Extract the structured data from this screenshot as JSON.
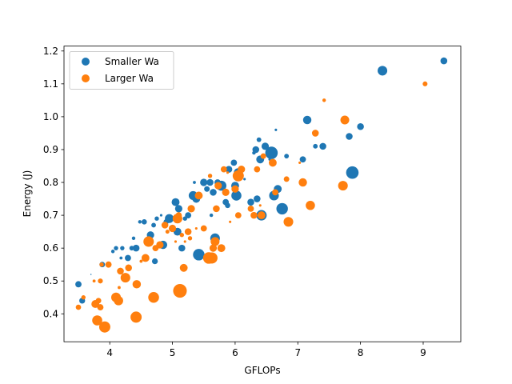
{
  "chart_data": {
    "type": "scatter",
    "title": "",
    "xlabel": "GFLOPs",
    "ylabel": "Energy (J)",
    "xlim": [
      3.27,
      9.6
    ],
    "ylim": [
      0.315,
      1.215
    ],
    "xticks": [
      4,
      5,
      6,
      7,
      8,
      9
    ],
    "yticks": [
      0.4,
      0.5,
      0.6,
      0.7,
      0.8,
      0.9,
      1.0,
      1.1,
      1.2
    ],
    "grid": false,
    "legend_position": "top-left",
    "series": [
      {
        "name": "Smaller Wa",
        "color": "#1f77b4",
        "points": [
          {
            "x": 3.5,
            "y": 0.49,
            "s": 25
          },
          {
            "x": 3.56,
            "y": 0.44,
            "s": 22
          },
          {
            "x": 3.7,
            "y": 0.52,
            "s": 1
          },
          {
            "x": 3.88,
            "y": 0.55,
            "s": 20
          },
          {
            "x": 4.05,
            "y": 0.59,
            "s": 8
          },
          {
            "x": 4.1,
            "y": 0.6,
            "s": 12
          },
          {
            "x": 4.18,
            "y": 0.57,
            "s": 6
          },
          {
            "x": 4.2,
            "y": 0.6,
            "s": 12
          },
          {
            "x": 4.29,
            "y": 0.57,
            "s": 25
          },
          {
            "x": 4.35,
            "y": 0.6,
            "s": 14
          },
          {
            "x": 4.38,
            "y": 0.63,
            "s": 8
          },
          {
            "x": 4.42,
            "y": 0.6,
            "s": 30
          },
          {
            "x": 4.48,
            "y": 0.68,
            "s": 8
          },
          {
            "x": 4.55,
            "y": 0.68,
            "s": 18
          },
          {
            "x": 4.65,
            "y": 0.64,
            "s": 35
          },
          {
            "x": 4.7,
            "y": 0.67,
            "s": 14
          },
          {
            "x": 4.72,
            "y": 0.56,
            "s": 22
          },
          {
            "x": 4.75,
            "y": 0.69,
            "s": 12
          },
          {
            "x": 4.82,
            "y": 0.7,
            "s": 4
          },
          {
            "x": 4.85,
            "y": 0.61,
            "s": 45
          },
          {
            "x": 4.9,
            "y": 0.68,
            "s": 18
          },
          {
            "x": 4.95,
            "y": 0.69,
            "s": 50
          },
          {
            "x": 5.0,
            "y": 0.66,
            "s": 8
          },
          {
            "x": 5.05,
            "y": 0.74,
            "s": 40
          },
          {
            "x": 5.08,
            "y": 0.65,
            "s": 40
          },
          {
            "x": 5.1,
            "y": 0.72,
            "s": 35
          },
          {
            "x": 5.15,
            "y": 0.6,
            "s": 30
          },
          {
            "x": 5.2,
            "y": 0.69,
            "s": 12
          },
          {
            "x": 5.25,
            "y": 0.7,
            "s": 25
          },
          {
            "x": 5.33,
            "y": 0.76,
            "s": 50
          },
          {
            "x": 5.35,
            "y": 0.8,
            "s": 6
          },
          {
            "x": 5.38,
            "y": 0.75,
            "s": 40
          },
          {
            "x": 5.42,
            "y": 0.58,
            "s": 85
          },
          {
            "x": 5.5,
            "y": 0.8,
            "s": 35
          },
          {
            "x": 5.55,
            "y": 0.78,
            "s": 20
          },
          {
            "x": 5.6,
            "y": 0.8,
            "s": 30
          },
          {
            "x": 5.62,
            "y": 0.7,
            "s": 8
          },
          {
            "x": 5.65,
            "y": 0.77,
            "s": 30
          },
          {
            "x": 5.68,
            "y": 0.63,
            "s": 60
          },
          {
            "x": 5.72,
            "y": 0.8,
            "s": 25
          },
          {
            "x": 5.78,
            "y": 0.79,
            "s": 65
          },
          {
            "x": 5.85,
            "y": 0.74,
            "s": 25
          },
          {
            "x": 5.88,
            "y": 0.73,
            "s": 18
          },
          {
            "x": 5.9,
            "y": 0.84,
            "s": 30
          },
          {
            "x": 5.98,
            "y": 0.86,
            "s": 25
          },
          {
            "x": 6.0,
            "y": 0.79,
            "s": 40
          },
          {
            "x": 6.02,
            "y": 0.76,
            "s": 65
          },
          {
            "x": 6.05,
            "y": 0.83,
            "s": 50
          },
          {
            "x": 6.1,
            "y": 0.84,
            "s": 20
          },
          {
            "x": 6.15,
            "y": 0.81,
            "s": 4
          },
          {
            "x": 6.25,
            "y": 0.74,
            "s": 30
          },
          {
            "x": 6.3,
            "y": 0.89,
            "s": 8
          },
          {
            "x": 6.33,
            "y": 0.9,
            "s": 30
          },
          {
            "x": 6.35,
            "y": 0.75,
            "s": 30
          },
          {
            "x": 6.38,
            "y": 0.93,
            "s": 14
          },
          {
            "x": 6.4,
            "y": 0.87,
            "s": 40
          },
          {
            "x": 6.42,
            "y": 0.7,
            "s": 70
          },
          {
            "x": 6.48,
            "y": 0.91,
            "s": 35
          },
          {
            "x": 6.55,
            "y": 0.87,
            "s": 4
          },
          {
            "x": 6.58,
            "y": 0.89,
            "s": 100
          },
          {
            "x": 6.62,
            "y": 0.76,
            "s": 60
          },
          {
            "x": 6.65,
            "y": 0.96,
            "s": 4
          },
          {
            "x": 6.68,
            "y": 0.78,
            "s": 40
          },
          {
            "x": 6.75,
            "y": 0.72,
            "s": 85
          },
          {
            "x": 6.82,
            "y": 0.88,
            "s": 14
          },
          {
            "x": 7.08,
            "y": 0.87,
            "s": 25
          },
          {
            "x": 7.15,
            "y": 0.99,
            "s": 45
          },
          {
            "x": 7.28,
            "y": 0.91,
            "s": 14
          },
          {
            "x": 7.4,
            "y": 0.91,
            "s": 30
          },
          {
            "x": 7.82,
            "y": 0.94,
            "s": 30
          },
          {
            "x": 7.87,
            "y": 0.83,
            "s": 100
          },
          {
            "x": 8.0,
            "y": 0.97,
            "s": 30
          },
          {
            "x": 8.35,
            "y": 1.14,
            "s": 60
          },
          {
            "x": 9.33,
            "y": 1.17,
            "s": 30
          }
        ]
      },
      {
        "name": "Larger Wa",
        "color": "#ff7f0e",
        "points": [
          {
            "x": 3.5,
            "y": 0.42,
            "s": 18
          },
          {
            "x": 3.58,
            "y": 0.45,
            "s": 12
          },
          {
            "x": 3.75,
            "y": 0.5,
            "s": 6
          },
          {
            "x": 3.77,
            "y": 0.43,
            "s": 40
          },
          {
            "x": 3.8,
            "y": 0.38,
            "s": 65
          },
          {
            "x": 3.82,
            "y": 0.44,
            "s": 20
          },
          {
            "x": 3.85,
            "y": 0.42,
            "s": 25
          },
          {
            "x": 3.85,
            "y": 0.5,
            "s": 16
          },
          {
            "x": 3.87,
            "y": 0.55,
            "s": 12
          },
          {
            "x": 3.92,
            "y": 0.36,
            "s": 80
          },
          {
            "x": 3.98,
            "y": 0.55,
            "s": 25
          },
          {
            "x": 4.1,
            "y": 0.45,
            "s": 60
          },
          {
            "x": 4.14,
            "y": 0.44,
            "s": 55
          },
          {
            "x": 4.15,
            "y": 0.48,
            "s": 6
          },
          {
            "x": 4.17,
            "y": 0.53,
            "s": 30
          },
          {
            "x": 4.25,
            "y": 0.51,
            "s": 60
          },
          {
            "x": 4.3,
            "y": 0.54,
            "s": 30
          },
          {
            "x": 4.42,
            "y": 0.39,
            "s": 80
          },
          {
            "x": 4.43,
            "y": 0.49,
            "s": 45
          },
          {
            "x": 4.5,
            "y": 0.56,
            "s": 6
          },
          {
            "x": 4.57,
            "y": 0.57,
            "s": 40
          },
          {
            "x": 4.62,
            "y": 0.62,
            "s": 70
          },
          {
            "x": 4.7,
            "y": 0.45,
            "s": 75
          },
          {
            "x": 4.73,
            "y": 0.6,
            "s": 25
          },
          {
            "x": 4.8,
            "y": 0.61,
            "s": 35
          },
          {
            "x": 4.88,
            "y": 0.67,
            "s": 30
          },
          {
            "x": 4.92,
            "y": 0.65,
            "s": 10
          },
          {
            "x": 5.0,
            "y": 0.66,
            "s": 35
          },
          {
            "x": 5.05,
            "y": 0.62,
            "s": 4
          },
          {
            "x": 5.08,
            "y": 0.69,
            "s": 60
          },
          {
            "x": 5.1,
            "y": 0.7,
            "s": 25
          },
          {
            "x": 5.12,
            "y": 0.47,
            "s": 120
          },
          {
            "x": 5.15,
            "y": 0.64,
            "s": 12
          },
          {
            "x": 5.18,
            "y": 0.54,
            "s": 40
          },
          {
            "x": 5.2,
            "y": 0.62,
            "s": 4
          },
          {
            "x": 5.25,
            "y": 0.65,
            "s": 30
          },
          {
            "x": 5.28,
            "y": 0.63,
            "s": 12
          },
          {
            "x": 5.3,
            "y": 0.72,
            "s": 35
          },
          {
            "x": 5.38,
            "y": 0.66,
            "s": 4
          },
          {
            "x": 5.42,
            "y": 0.76,
            "s": 40
          },
          {
            "x": 5.5,
            "y": 0.66,
            "s": 25
          },
          {
            "x": 5.58,
            "y": 0.57,
            "s": 85
          },
          {
            "x": 5.6,
            "y": 0.82,
            "s": 12
          },
          {
            "x": 5.63,
            "y": 0.57,
            "s": 80
          },
          {
            "x": 5.65,
            "y": 0.6,
            "s": 35
          },
          {
            "x": 5.68,
            "y": 0.62,
            "s": 50
          },
          {
            "x": 5.7,
            "y": 0.72,
            "s": 30
          },
          {
            "x": 5.73,
            "y": 0.79,
            "s": 35
          },
          {
            "x": 5.78,
            "y": 0.6,
            "s": 40
          },
          {
            "x": 5.82,
            "y": 0.84,
            "s": 25
          },
          {
            "x": 5.85,
            "y": 0.77,
            "s": 35
          },
          {
            "x": 5.88,
            "y": 0.83,
            "s": 4
          },
          {
            "x": 5.92,
            "y": 0.68,
            "s": 4
          },
          {
            "x": 6.0,
            "y": 0.78,
            "s": 35
          },
          {
            "x": 6.05,
            "y": 0.7,
            "s": 25
          },
          {
            "x": 6.05,
            "y": 0.82,
            "s": 80
          },
          {
            "x": 6.1,
            "y": 0.84,
            "s": 35
          },
          {
            "x": 6.25,
            "y": 0.72,
            "s": 25
          },
          {
            "x": 6.3,
            "y": 0.7,
            "s": 30
          },
          {
            "x": 6.35,
            "y": 0.84,
            "s": 25
          },
          {
            "x": 6.4,
            "y": 0.73,
            "s": 4
          },
          {
            "x": 6.42,
            "y": 0.7,
            "s": 40
          },
          {
            "x": 6.45,
            "y": 0.88,
            "s": 20
          },
          {
            "x": 6.6,
            "y": 0.86,
            "s": 40
          },
          {
            "x": 6.64,
            "y": 0.77,
            "s": 25
          },
          {
            "x": 6.82,
            "y": 0.81,
            "s": 20
          },
          {
            "x": 6.85,
            "y": 0.68,
            "s": 60
          },
          {
            "x": 7.03,
            "y": 0.86,
            "s": 4
          },
          {
            "x": 7.08,
            "y": 0.8,
            "s": 45
          },
          {
            "x": 7.2,
            "y": 0.73,
            "s": 55
          },
          {
            "x": 7.28,
            "y": 0.95,
            "s": 30
          },
          {
            "x": 7.42,
            "y": 1.05,
            "s": 8
          },
          {
            "x": 7.72,
            "y": 0.79,
            "s": 60
          },
          {
            "x": 7.75,
            "y": 0.99,
            "s": 50
          },
          {
            "x": 9.03,
            "y": 1.1,
            "s": 15
          }
        ]
      }
    ]
  }
}
